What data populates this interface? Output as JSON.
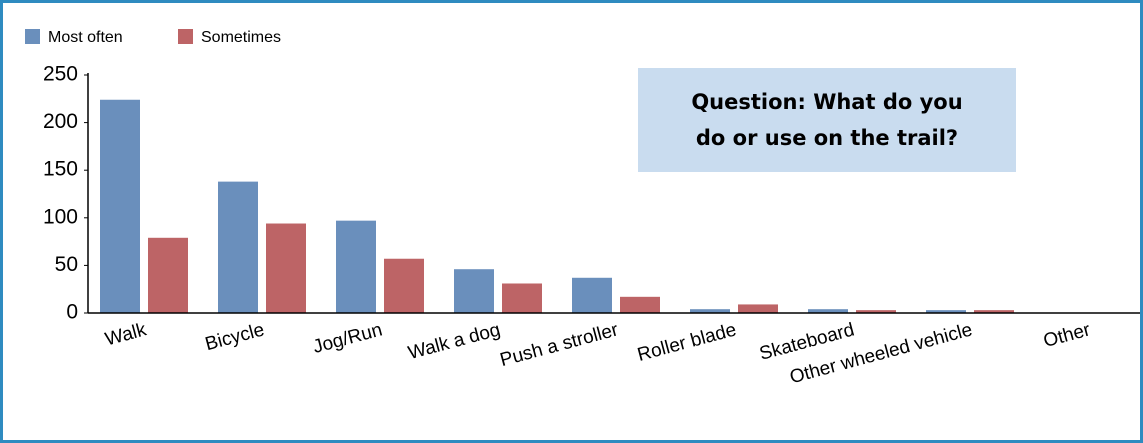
{
  "chart_data": {
    "type": "bar",
    "annotation": "Question: What do you do or use on the trail?",
    "categories": [
      "Walk",
      "Bicycle",
      "Jog/Run",
      "Walk a dog",
      "Push a stroller",
      "Roller blade",
      "Skateboard",
      "Other wheeled vehicle",
      "Other"
    ],
    "series": [
      {
        "name": "Most often",
        "color": "#6a8fbc",
        "values": [
          224,
          138,
          97,
          46,
          37,
          4,
          4,
          3,
          0
        ]
      },
      {
        "name": "Sometimes",
        "color": "#bd6466",
        "values": [
          79,
          94,
          57,
          31,
          17,
          9,
          3,
          3,
          0
        ]
      }
    ],
    "ylim": [
      0,
      250
    ],
    "yticks": [
      0,
      50,
      100,
      150,
      200,
      250
    ],
    "legend": "top-left"
  }
}
